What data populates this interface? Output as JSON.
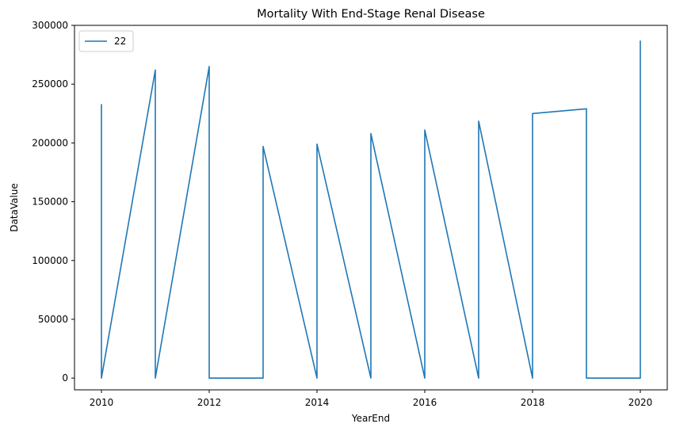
{
  "chart_data": {
    "type": "line",
    "title": "Mortality With End-Stage Renal Disease",
    "xlabel": "YearEnd",
    "ylabel": "DataValue",
    "xlim": [
      2009.5,
      2020.5
    ],
    "ylim": [
      -10000,
      300000
    ],
    "xticks": [
      2010,
      2012,
      2014,
      2016,
      2018,
      2020
    ],
    "xtick_labels": [
      "2010",
      "2012",
      "2014",
      "2016",
      "2018",
      "2020"
    ],
    "yticks": [
      0,
      50000,
      100000,
      150000,
      200000,
      250000,
      300000
    ],
    "ytick_labels": [
      "0",
      "50000",
      "100000",
      "150000",
      "200000",
      "250000",
      "300000"
    ],
    "grid": false,
    "legend_position": "top-left",
    "series": [
      {
        "name": "22",
        "color": "#1f77b4",
        "x": [
          2010,
          2010,
          2011,
          2011,
          2012,
          2012,
          2013,
          2013,
          2014,
          2014,
          2015,
          2015,
          2016,
          2016,
          2017,
          2017,
          2018,
          2018,
          2019,
          2019,
          2020,
          2020
        ],
        "y": [
          233000,
          0,
          262000,
          0,
          265000,
          0,
          0,
          197000,
          0,
          199000,
          0,
          208000,
          0,
          211000,
          0,
          218500,
          0,
          225000,
          229000,
          0,
          0,
          287000
        ]
      }
    ]
  }
}
